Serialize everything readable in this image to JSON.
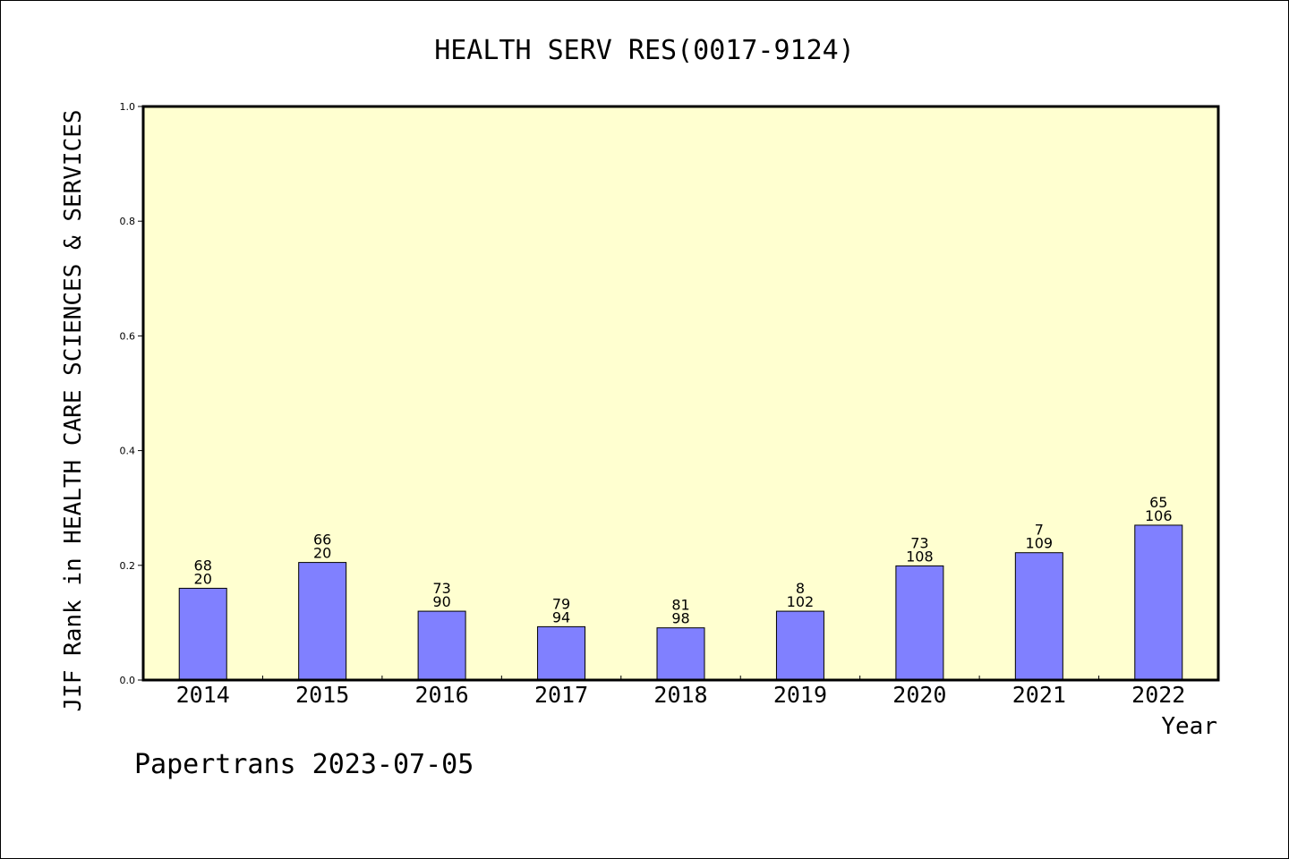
{
  "chart_data": {
    "type": "bar",
    "title": "HEALTH SERV RES(0017-9124)",
    "xlabel": "Year",
    "ylabel": "JIF Rank in HEALTH CARE SCIENCES & SERVICES",
    "categories": [
      "2014",
      "2015",
      "2016",
      "2017",
      "2018",
      "2019",
      "2020",
      "2021",
      "2022"
    ],
    "values": [
      0.16,
      0.205,
      0.12,
      0.093,
      0.091,
      0.12,
      0.199,
      0.222,
      0.27
    ],
    "bar_labels": [
      [
        "68",
        "20"
      ],
      [
        "66",
        "20"
      ],
      [
        "73",
        "90"
      ],
      [
        "79",
        "94"
      ],
      [
        "81",
        "98"
      ],
      [
        "8",
        "102"
      ],
      [
        "73",
        "108"
      ],
      [
        "7",
        "109"
      ],
      [
        "65",
        "106"
      ]
    ],
    "ylim": [
      0,
      1.0
    ],
    "yticks": [
      "0.0",
      "0.2",
      "0.4",
      "0.6",
      "0.8",
      "1.0"
    ],
    "grid": false,
    "colors": {
      "bar": "#8080ff",
      "plot_background": "#ffffd0"
    }
  },
  "footer": {
    "text": "Papertrans 2023-07-05"
  }
}
